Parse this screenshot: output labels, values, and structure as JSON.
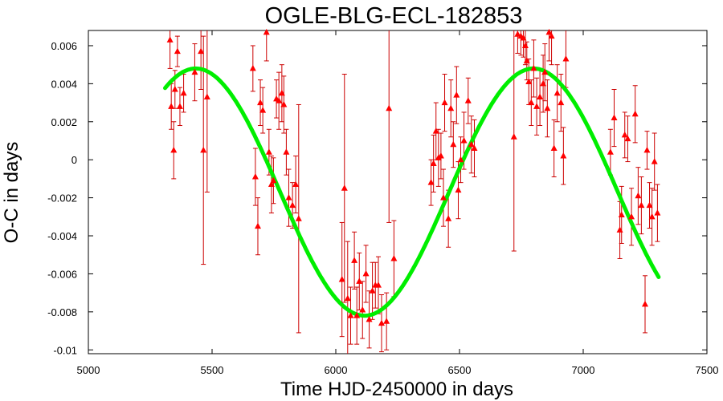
{
  "chart_data": {
    "type": "scatter",
    "title": "OGLE-BLG-ECL-182853",
    "xlabel": "Time HJD-2450000 in days",
    "ylabel": "O-C in days",
    "xlim": [
      5000,
      7500
    ],
    "ylim": [
      -0.0102,
      0.0068
    ],
    "xticks": [
      {
        "value": 5000,
        "label": "5000"
      },
      {
        "value": 5500,
        "label": "5500"
      },
      {
        "value": 6000,
        "label": "6000"
      },
      {
        "value": 6500,
        "label": "6500"
      },
      {
        "value": 7000,
        "label": "7000"
      },
      {
        "value": 7500,
        "label": "7500"
      }
    ],
    "yticks": [
      {
        "value": 0.006,
        "label": "0.006"
      },
      {
        "value": 0.004,
        "label": "0.004"
      },
      {
        "value": 0.002,
        "label": "0.002"
      },
      {
        "value": 0,
        "label": "0"
      },
      {
        "value": -0.002,
        "label": "-0.002"
      },
      {
        "value": -0.004,
        "label": "-0.004"
      },
      {
        "value": -0.006,
        "label": "-0.006"
      },
      {
        "value": -0.008,
        "label": "-0.008"
      },
      {
        "value": -0.01,
        "label": "-0.01"
      }
    ],
    "grid": false,
    "legend": "none",
    "colors": {
      "points": "#ff0000",
      "errorbars": "#cc0000",
      "fit": "#00ee00"
    },
    "series": [
      {
        "kind": "points_with_errorbars",
        "points": [
          {
            "x": 5330,
            "y": 0.0063,
            "err": 0.0015
          },
          {
            "x": 5335,
            "y": 0.0028,
            "err": 0.0012
          },
          {
            "x": 5345,
            "y": 0.0005,
            "err": 0.0015
          },
          {
            "x": 5350,
            "y": 0.0037,
            "err": 0.001
          },
          {
            "x": 5360,
            "y": 0.0057,
            "err": 0.0008
          },
          {
            "x": 5370,
            "y": 0.0028,
            "err": 0.001
          },
          {
            "x": 5385,
            "y": 0.0035,
            "err": 0.001
          },
          {
            "x": 5430,
            "y": 0.0046,
            "err": 0.0015
          },
          {
            "x": 5455,
            "y": 0.0057,
            "err": 0.002
          },
          {
            "x": 5465,
            "y": 0.0005,
            "err": 0.006
          },
          {
            "x": 5480,
            "y": 0.0033,
            "err": 0.005
          },
          {
            "x": 5665,
            "y": 0.0048,
            "err": 0.0012
          },
          {
            "x": 5675,
            "y": -0.0009,
            "err": 0.0015
          },
          {
            "x": 5685,
            "y": -0.0035,
            "err": 0.0015
          },
          {
            "x": 5695,
            "y": 0.003,
            "err": 0.0012
          },
          {
            "x": 5705,
            "y": 0.0026,
            "err": 0.0012
          },
          {
            "x": 5720,
            "y": 0.0067,
            "err": 0.0015
          },
          {
            "x": 5730,
            "y": 0.0004,
            "err": 0.0012
          },
          {
            "x": 5740,
            "y": -0.0013,
            "err": 0.0015
          },
          {
            "x": 5748,
            "y": -0.0011,
            "err": 0.0012
          },
          {
            "x": 5760,
            "y": 0.0032,
            "err": 0.001
          },
          {
            "x": 5770,
            "y": 0.0031,
            "err": 0.0015
          },
          {
            "x": 5782,
            "y": 0.0035,
            "err": 0.0015
          },
          {
            "x": 5790,
            "y": 0.0029,
            "err": 0.0015
          },
          {
            "x": 5800,
            "y": 0.0004,
            "err": 0.0012
          },
          {
            "x": 5810,
            "y": -0.002,
            "err": 0.0015
          },
          {
            "x": 5825,
            "y": -0.0024,
            "err": 0.0012
          },
          {
            "x": 5838,
            "y": -0.0013,
            "err": 0.0015
          },
          {
            "x": 5850,
            "y": -0.0031,
            "err": 0.006
          },
          {
            "x": 6025,
            "y": -0.0063,
            "err": 0.003
          },
          {
            "x": 6035,
            "y": -0.0015,
            "err": 0.006
          },
          {
            "x": 6048,
            "y": -0.0073,
            "err": 0.003
          },
          {
            "x": 6060,
            "y": -0.0082,
            "err": 0.0015
          },
          {
            "x": 6075,
            "y": -0.0053,
            "err": 0.0015
          },
          {
            "x": 6085,
            "y": -0.0082,
            "err": 0.0015
          },
          {
            "x": 6095,
            "y": -0.0064,
            "err": 0.0015
          },
          {
            "x": 6108,
            "y": -0.0079,
            "err": 0.0015
          },
          {
            "x": 6122,
            "y": -0.006,
            "err": 0.0015
          },
          {
            "x": 6135,
            "y": -0.0084,
            "err": 0.0015
          },
          {
            "x": 6148,
            "y": -0.0069,
            "err": 0.0015
          },
          {
            "x": 6160,
            "y": -0.0066,
            "err": 0.0012
          },
          {
            "x": 6172,
            "y": -0.0066,
            "err": 0.0015
          },
          {
            "x": 6185,
            "y": -0.0086,
            "err": 0.0015
          },
          {
            "x": 6205,
            "y": -0.0085,
            "err": 0.0015
          },
          {
            "x": 6215,
            "y": 0.0027,
            "err": 0.006
          },
          {
            "x": 6235,
            "y": -0.0052,
            "err": 0.002
          },
          {
            "x": 6385,
            "y": -0.0012,
            "err": 0.0012
          },
          {
            "x": 6395,
            "y": -0.0002,
            "err": 0.0015
          },
          {
            "x": 6405,
            "y": 0.0015,
            "err": 0.0015
          },
          {
            "x": 6415,
            "y": 0.0001,
            "err": 0.0015
          },
          {
            "x": 6425,
            "y": 0.0002,
            "err": 0.0012
          },
          {
            "x": 6435,
            "y": -0.002,
            "err": 0.0015
          },
          {
            "x": 6440,
            "y": 0.003,
            "err": 0.0015
          },
          {
            "x": 6455,
            "y": -0.0031,
            "err": 0.0015
          },
          {
            "x": 6465,
            "y": 0.0027,
            "err": 0.0015
          },
          {
            "x": 6475,
            "y": 0.0008,
            "err": 0.0012
          },
          {
            "x": 6488,
            "y": 0.0034,
            "err": 0.0015
          },
          {
            "x": 6495,
            "y": -0.0016,
            "err": 0.0015
          },
          {
            "x": 6505,
            "y": 0.0,
            "err": 0.0012
          },
          {
            "x": 6518,
            "y": 0.001,
            "err": 0.0015
          },
          {
            "x": 6535,
            "y": 0.0031,
            "err": 0.0012
          },
          {
            "x": 6548,
            "y": 0.0008,
            "err": 0.0015
          },
          {
            "x": 6560,
            "y": 0.0006,
            "err": 0.0015
          },
          {
            "x": 6720,
            "y": 0.0012,
            "err": 0.006
          },
          {
            "x": 6735,
            "y": 0.0066,
            "err": 0.001
          },
          {
            "x": 6748,
            "y": 0.0065,
            "err": 0.001
          },
          {
            "x": 6758,
            "y": 0.0064,
            "err": 0.001
          },
          {
            "x": 6766,
            "y": 0.006,
            "err": 0.001
          },
          {
            "x": 6772,
            "y": 0.0052,
            "err": 0.001
          },
          {
            "x": 6780,
            "y": 0.0041,
            "err": 0.0012
          },
          {
            "x": 6790,
            "y": 0.003,
            "err": 0.0012
          },
          {
            "x": 6800,
            "y": 0.0048,
            "err": 0.0015
          },
          {
            "x": 6812,
            "y": 0.0028,
            "err": 0.0015
          },
          {
            "x": 6825,
            "y": 0.0033,
            "err": 0.0015
          },
          {
            "x": 6838,
            "y": 0.004,
            "err": 0.0015
          },
          {
            "x": 6845,
            "y": 0.0046,
            "err": 0.0015
          },
          {
            "x": 6855,
            "y": 0.0027,
            "err": 0.0015
          },
          {
            "x": 6862,
            "y": 0.0067,
            "err": 0.0015
          },
          {
            "x": 6872,
            "y": 0.0065,
            "err": 0.0015
          },
          {
            "x": 6882,
            "y": 0.0006,
            "err": 0.0015
          },
          {
            "x": 6895,
            "y": 0.0035,
            "err": 0.0015
          },
          {
            "x": 6910,
            "y": 0.003,
            "err": 0.0015
          },
          {
            "x": 6920,
            "y": 0.0002,
            "err": 0.0015
          },
          {
            "x": 6930,
            "y": 0.0053,
            "err": 0.0015
          },
          {
            "x": 7110,
            "y": 0.0004,
            "err": 0.0012
          },
          {
            "x": 7125,
            "y": 0.0022,
            "err": 0.0015
          },
          {
            "x": 7148,
            "y": -0.0037,
            "err": 0.0015
          },
          {
            "x": 7155,
            "y": -0.0029,
            "err": 0.0015
          },
          {
            "x": 7168,
            "y": 0.0013,
            "err": 0.0012
          },
          {
            "x": 7180,
            "y": 0.0011,
            "err": 0.0012
          },
          {
            "x": 7195,
            "y": -0.003,
            "err": 0.0015
          },
          {
            "x": 7210,
            "y": 0.0024,
            "err": 0.0015
          },
          {
            "x": 7222,
            "y": -0.0019,
            "err": 0.0015
          },
          {
            "x": 7235,
            "y": -0.0024,
            "err": 0.0015
          },
          {
            "x": 7250,
            "y": -0.0076,
            "err": 0.0015
          },
          {
            "x": 7258,
            "y": 0.0005,
            "err": 0.001
          },
          {
            "x": 7268,
            "y": -0.0024,
            "err": 0.0012
          },
          {
            "x": 7278,
            "y": -0.003,
            "err": 0.0015
          },
          {
            "x": 7288,
            "y": -0.0001,
            "err": 0.0015
          },
          {
            "x": 7300,
            "y": -0.0028,
            "err": 0.0015
          }
        ]
      },
      {
        "kind": "fit_curve",
        "x_range": [
          5310,
          7305
        ],
        "model": "sine",
        "amplitude": 0.0065,
        "offset": -0.0017,
        "period": 1365,
        "peak_x": 5434
      }
    ]
  }
}
